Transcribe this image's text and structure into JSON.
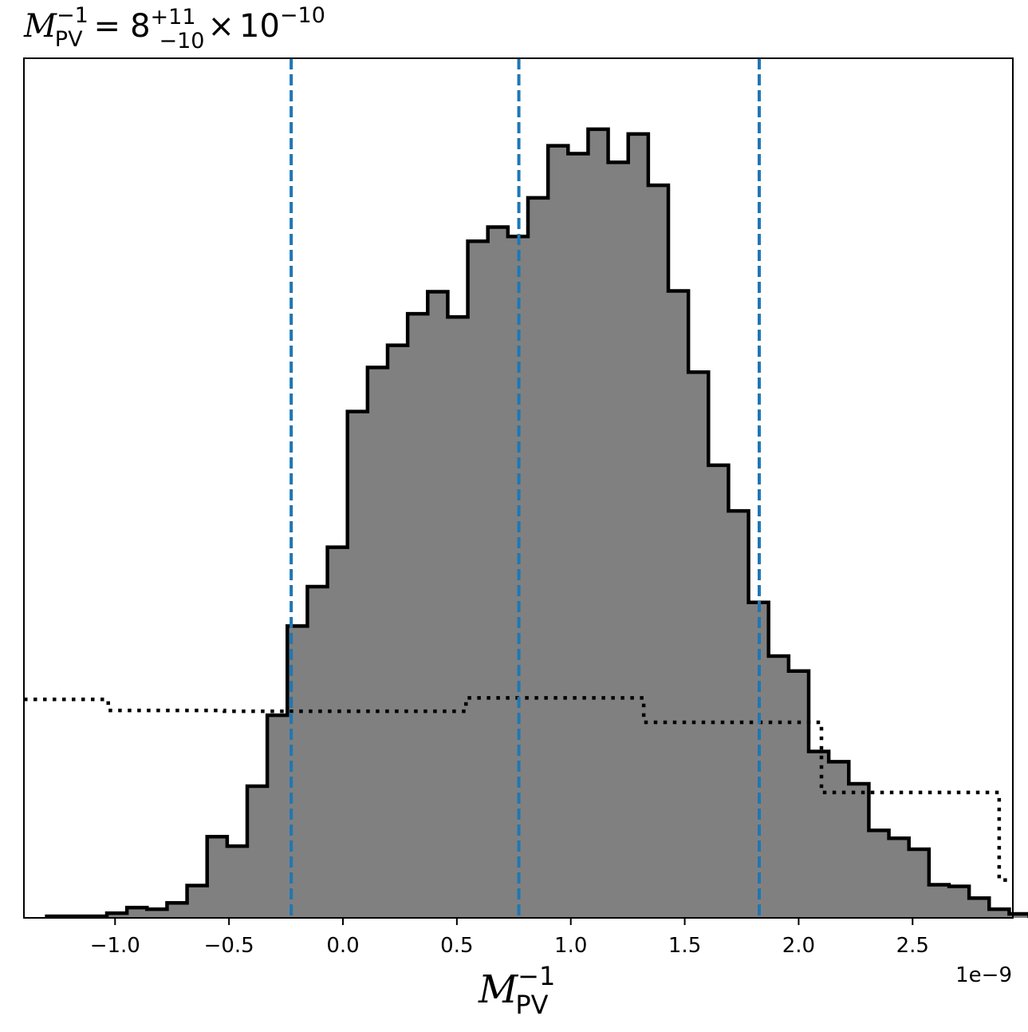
{
  "chart_data": {
    "type": "histogram",
    "title": {
      "lhs_base": "M",
      "lhs_sup": "−1",
      "lhs_sub": "PV",
      "equals": "=",
      "value": "8",
      "err_plus": "+11",
      "err_minus": "−10",
      "times": "×",
      "ten": "10",
      "exponent": "−10"
    },
    "xlabel": {
      "base": "M",
      "sup": "−1",
      "sub": "PV"
    },
    "x_offset_label": "1e−9",
    "x_scale": 1e-09,
    "xlim": [
      -1.4,
      2.94
    ],
    "ylim": [
      0,
      1.09
    ],
    "x_ticks": [
      {
        "value": -1.0,
        "label": "−1.0"
      },
      {
        "value": -0.5,
        "label": "−0.5"
      },
      {
        "value": 0.0,
        "label": "0.0"
      },
      {
        "value": 0.5,
        "label": "0.5"
      },
      {
        "value": 1.0,
        "label": "1.0"
      },
      {
        "value": 1.5,
        "label": "1.5"
      },
      {
        "value": 2.0,
        "label": "2.0"
      },
      {
        "value": 2.5,
        "label": "2.5"
      }
    ],
    "yticks_visible": false,
    "grid": false,
    "posterior": {
      "bin_start": -1.3,
      "bin_width": 0.088,
      "values": [
        0.002,
        0.002,
        0.002,
        0.006,
        0.013,
        0.011,
        0.019,
        0.041,
        0.103,
        0.091,
        0.167,
        0.257,
        0.37,
        0.42,
        0.47,
        0.642,
        0.698,
        0.726,
        0.766,
        0.794,
        0.762,
        0.858,
        0.876,
        0.864,
        0.913,
        0.979,
        0.969,
        1.0,
        0.958,
        0.994,
        0.929,
        0.795,
        0.692,
        0.574,
        0.516,
        0.4,
        0.332,
        0.313,
        0.211,
        0.198,
        0.17,
        0.111,
        0.101,
        0.087,
        0.042,
        0.04,
        0.025,
        0.011,
        0.005,
        0.002,
        0.003
      ]
    },
    "prior": {
      "edges": [
        -1.4,
        -1.03,
        -0.52,
        0.54,
        1.32,
        2.1,
        2.88,
        2.94
      ],
      "values": [
        0.277,
        0.263,
        0.262,
        0.279,
        0.248,
        0.159,
        0.048
      ]
    },
    "quantiles": [
      -0.227,
      0.772,
      1.827
    ],
    "colors": {
      "fill": "#808080",
      "edge": "#000000",
      "quantile_line": "#1f77b4",
      "prior_line": "#000000"
    }
  }
}
